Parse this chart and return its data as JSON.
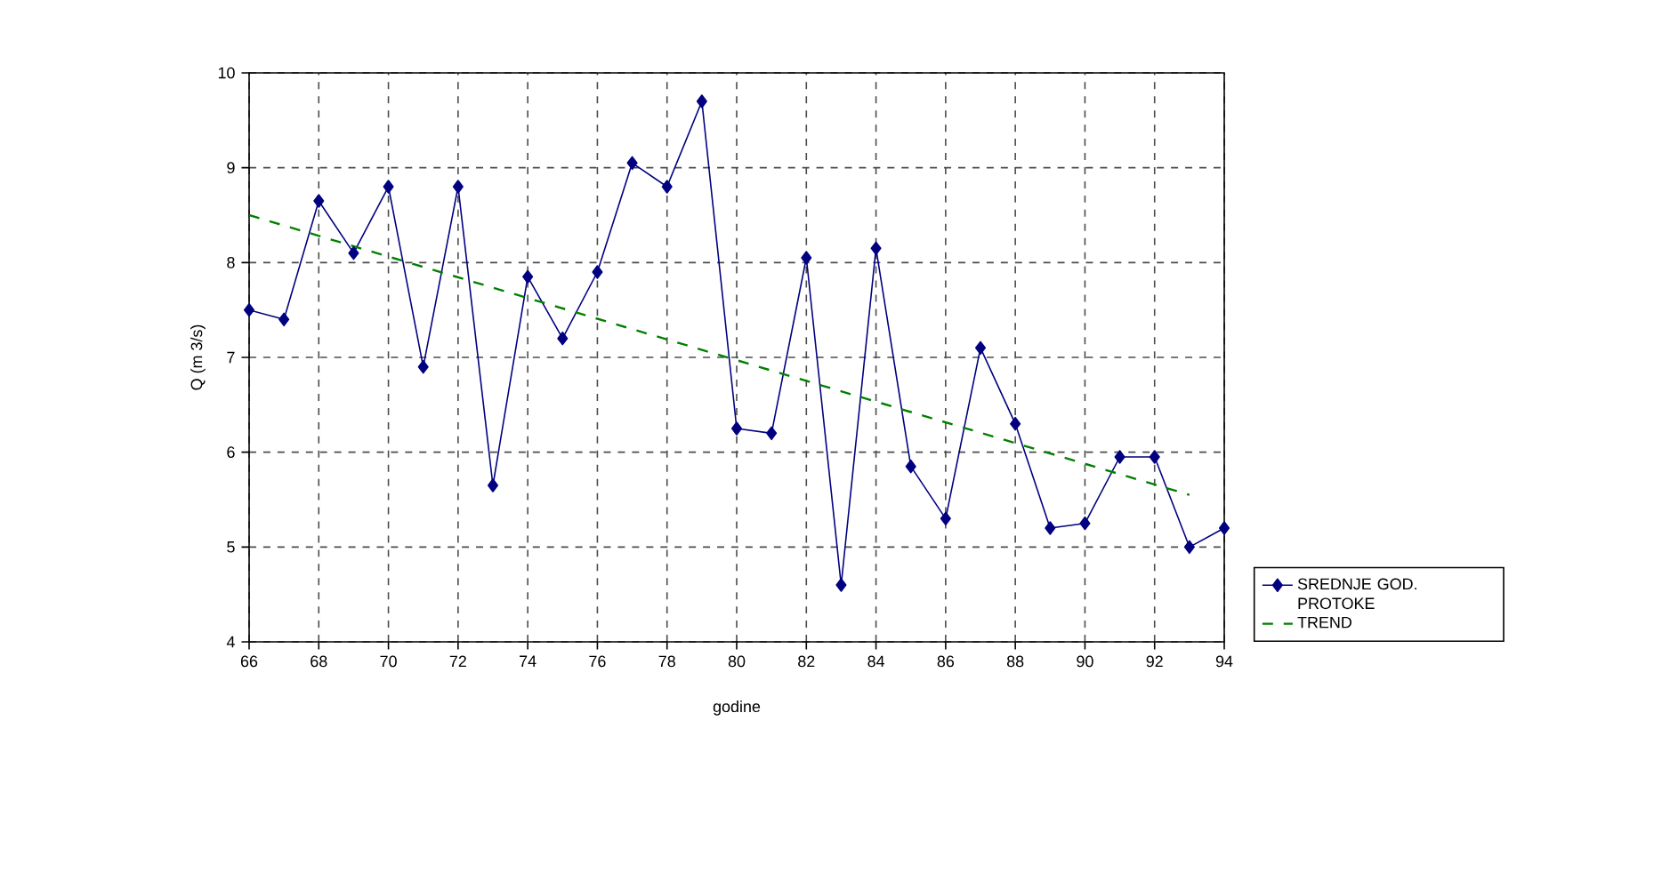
{
  "chart_data": {
    "type": "line",
    "xlabel": "godine",
    "ylabel": "Q (m 3/s)",
    "xlim": [
      66,
      94
    ],
    "xticks": [
      66,
      68,
      70,
      72,
      74,
      76,
      78,
      80,
      82,
      84,
      86,
      88,
      90,
      92,
      94
    ],
    "ylim": [
      4,
      10
    ],
    "yticks": [
      4,
      5,
      6,
      7,
      8,
      9,
      10
    ],
    "grid": true,
    "legend": "right",
    "series": [
      {
        "name": "SREDNJE GOD. PROTOKE",
        "color": "#000080",
        "marker": "diamond",
        "line_style": "solid",
        "x": [
          66,
          67,
          68,
          69,
          70,
          71,
          72,
          73,
          74,
          75,
          76,
          77,
          78,
          79,
          80,
          81,
          82,
          83,
          84,
          85,
          86,
          87,
          88,
          89,
          90,
          91,
          92,
          93,
          94
        ],
        "values": [
          7.5,
          7.4,
          8.65,
          8.1,
          8.8,
          6.9,
          8.8,
          5.65,
          7.85,
          7.2,
          7.9,
          9.05,
          8.8,
          9.7,
          6.25,
          6.2,
          8.05,
          4.6,
          8.15,
          5.85,
          5.3,
          7.1,
          6.3,
          5.2,
          5.25,
          5.95,
          5.95,
          5.0,
          5.2
        ]
      },
      {
        "name": "TREND",
        "color": "#008000",
        "marker": "none",
        "line_style": "dashed",
        "x": [
          66,
          93
        ],
        "values": [
          8.5,
          5.55
        ]
      }
    ]
  }
}
